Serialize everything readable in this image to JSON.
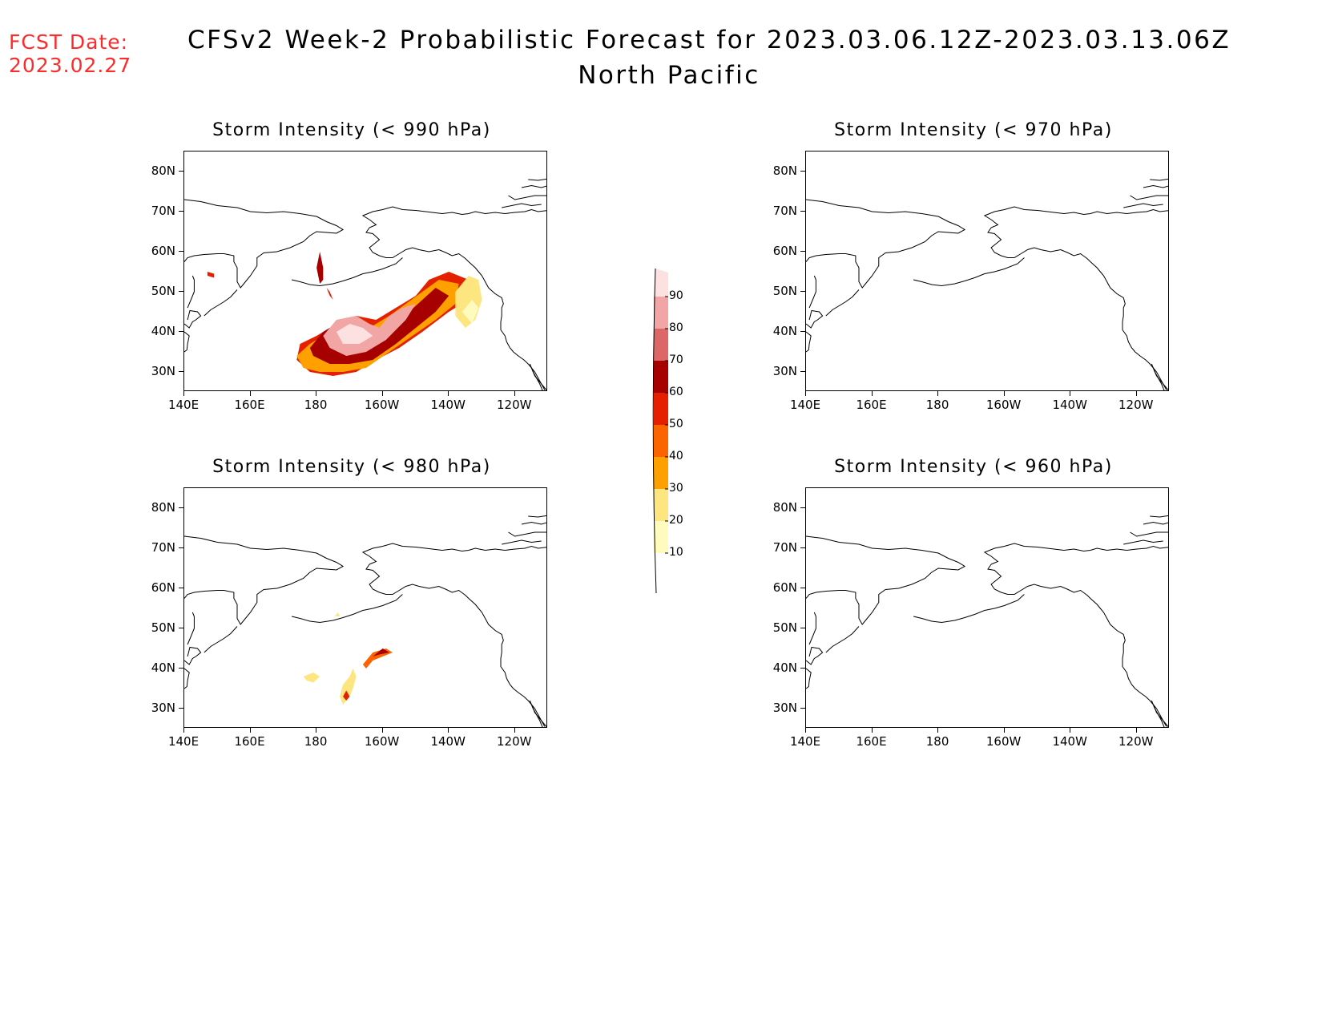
{
  "fcst_date": {
    "label": "FCST Date:",
    "value": "2023.02.27"
  },
  "title": {
    "line1": "CFSv2 Week-2 Probabilistic Forecast for 2023.03.06.12Z-2023.03.13.06Z",
    "line2": "North Pacific"
  },
  "axes": {
    "lat_ticks": [
      "80N",
      "70N",
      "60N",
      "50N",
      "40N",
      "30N"
    ],
    "lon_ticks": [
      "140E",
      "160E",
      "180",
      "160W",
      "140W",
      "120W"
    ]
  },
  "panels": [
    {
      "id": "p990",
      "title": "Storm Intensity (< 990 hPa)"
    },
    {
      "id": "p970",
      "title": "Storm Intensity (< 970 hPa)"
    },
    {
      "id": "p980",
      "title": "Storm Intensity (< 980 hPa)"
    },
    {
      "id": "p960",
      "title": "Storm Intensity (< 960 hPa)"
    }
  ],
  "colorbar": {
    "levels": [
      "10",
      "20",
      "30",
      "40",
      "50",
      "60",
      "70",
      "80",
      "90"
    ],
    "colors": [
      "#fffbbf",
      "#fde580",
      "#fda000",
      "#fc6400",
      "#e42000",
      "#a70000",
      "#dd6666",
      "#f2a5a5",
      "#fde0e0"
    ]
  }
}
